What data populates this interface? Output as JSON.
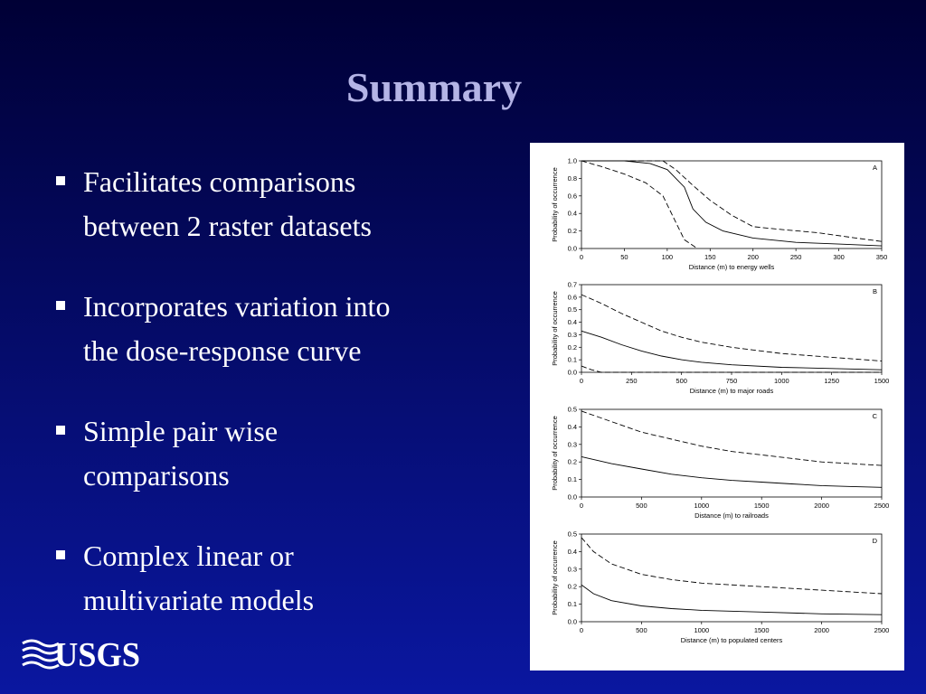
{
  "title": "Summary",
  "bullets": [
    [
      "Facilitates comparisons",
      "between 2 raster datasets"
    ],
    [
      "Incorporates variation into",
      "the dose-response curve"
    ],
    [
      "Simple pair wise",
      "comparisons"
    ],
    [
      "Complex linear or",
      "multivariate models"
    ]
  ],
  "logo": "USGS",
  "figure": {
    "panels": [
      {
        "type": "line",
        "label": "A",
        "xlabel": "Distance (m) to energy wells",
        "ylabel": "Probability of occurrence",
        "xlim": [
          0,
          350
        ],
        "ylim": [
          0,
          1
        ],
        "xticks": [
          0,
          50,
          100,
          150,
          200,
          250,
          300,
          350
        ],
        "yticks": [
          {
            "value": 0,
            "label": "0.0"
          },
          {
            "value": 0.2,
            "label": "0.2"
          },
          {
            "value": 0.4,
            "label": "0.4"
          },
          {
            "value": 0.6,
            "label": "0.6"
          },
          {
            "value": 0.8,
            "label": "0.8"
          },
          {
            "value": 1,
            "label": "1.0"
          }
        ],
        "series": [
          {
            "style": "dashed",
            "x": [
              0,
              95,
              110,
              130,
              150,
              175,
              200,
              230,
              275,
              320,
              350
            ],
            "values": [
              1,
              1,
              0.9,
              0.72,
              0.55,
              0.38,
              0.25,
              0.22,
              0.18,
              0.12,
              0.08
            ]
          },
          {
            "style": "solid",
            "x": [
              0,
              50,
              80,
              100,
              120,
              130,
              145,
              165,
              200,
              250,
              300,
              350
            ],
            "values": [
              1,
              1,
              0.97,
              0.9,
              0.7,
              0.45,
              0.3,
              0.2,
              0.12,
              0.07,
              0.05,
              0.03
            ]
          },
          {
            "style": "dashed",
            "x": [
              0,
              25,
              50,
              75,
              95,
              110,
              120,
              135
            ],
            "values": [
              1,
              0.93,
              0.85,
              0.75,
              0.6,
              0.3,
              0.1,
              0
            ]
          }
        ]
      },
      {
        "type": "line",
        "label": "B",
        "xlabel": "Distance (m) to major roads",
        "ylabel": "Probability of occurrence",
        "xlim": [
          0,
          1500
        ],
        "ylim": [
          0,
          0.7
        ],
        "xticks": [
          0,
          250,
          500,
          750,
          1000,
          1250,
          1500
        ],
        "yticks": [
          {
            "value": 0,
            "label": "0.0"
          },
          0.1,
          0.2,
          0.3,
          0.4,
          0.5,
          0.6,
          0.7
        ],
        "series": [
          {
            "style": "dashed",
            "x": [
              0,
              100,
              200,
              300,
              400,
              500,
              600,
              750,
              1000,
              1250,
              1500
            ],
            "values": [
              0.62,
              0.55,
              0.47,
              0.4,
              0.33,
              0.28,
              0.24,
              0.2,
              0.15,
              0.12,
              0.09
            ]
          },
          {
            "style": "solid",
            "x": [
              0,
              100,
              200,
              300,
              400,
              500,
              600,
              750,
              1000,
              1250,
              1500
            ],
            "values": [
              0.33,
              0.28,
              0.22,
              0.17,
              0.13,
              0.1,
              0.08,
              0.06,
              0.04,
              0.03,
              0.02
            ]
          },
          {
            "style": "dashed",
            "x": [
              0,
              50,
              100,
              1500
            ],
            "values": [
              0.05,
              0.02,
              0,
              0
            ]
          }
        ]
      },
      {
        "type": "line",
        "label": "C",
        "xlabel": "Distance (m) to railroads",
        "ylabel": "Probability of occurrence",
        "xlim": [
          0,
          2500
        ],
        "ylim": [
          0,
          0.5
        ],
        "xticks": [
          0,
          500,
          1000,
          1500,
          2000,
          2500
        ],
        "yticks": [
          {
            "value": 0,
            "label": "0.0"
          },
          0.1,
          0.2,
          0.3,
          0.4,
          0.5
        ],
        "series": [
          {
            "style": "dashed",
            "x": [
              0,
              250,
              500,
              750,
              1000,
              1250,
              1500,
              1750,
              2000,
              2250,
              2500
            ],
            "values": [
              0.49,
              0.43,
              0.37,
              0.33,
              0.29,
              0.26,
              0.24,
              0.22,
              0.2,
              0.19,
              0.18
            ]
          },
          {
            "style": "solid",
            "x": [
              0,
              250,
              500,
              750,
              1000,
              1250,
              1500,
              1750,
              2000,
              2250,
              2500
            ],
            "values": [
              0.23,
              0.19,
              0.16,
              0.13,
              0.11,
              0.095,
              0.085,
              0.075,
              0.065,
              0.06,
              0.055
            ]
          }
        ]
      },
      {
        "type": "line",
        "label": "D",
        "xlabel": "Distance (m) to populated centers",
        "ylabel": "Probability of occurrence",
        "xlim": [
          0,
          2500
        ],
        "ylim": [
          0,
          0.5
        ],
        "xticks": [
          0,
          500,
          1000,
          1500,
          2000,
          2500
        ],
        "yticks": [
          {
            "value": 0,
            "label": "0.0"
          },
          0.1,
          0.2,
          0.3,
          0.4,
          0.5
        ],
        "series": [
          {
            "style": "dashed",
            "x": [
              0,
              100,
              250,
              500,
              750,
              1000,
              1500,
              2000,
              2500
            ],
            "values": [
              0.48,
              0.4,
              0.33,
              0.27,
              0.24,
              0.22,
              0.2,
              0.18,
              0.16
            ]
          },
          {
            "style": "solid",
            "x": [
              0,
              100,
              250,
              500,
              750,
              1000,
              1500,
              2000,
              2500
            ],
            "values": [
              0.21,
              0.16,
              0.12,
              0.09,
              0.075,
              0.065,
              0.055,
              0.045,
              0.04
            ]
          }
        ]
      }
    ]
  }
}
